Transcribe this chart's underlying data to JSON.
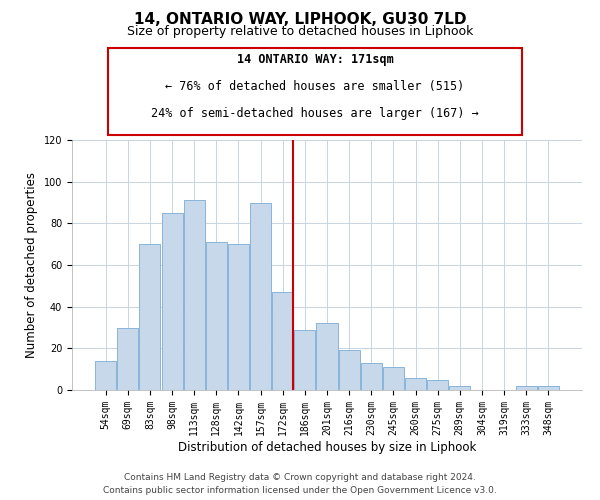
{
  "title": "14, ONTARIO WAY, LIPHOOK, GU30 7LD",
  "subtitle": "Size of property relative to detached houses in Liphook",
  "xlabel": "Distribution of detached houses by size in Liphook",
  "ylabel": "Number of detached properties",
  "bar_labels": [
    "54sqm",
    "69sqm",
    "83sqm",
    "98sqm",
    "113sqm",
    "128sqm",
    "142sqm",
    "157sqm",
    "172sqm",
    "186sqm",
    "201sqm",
    "216sqm",
    "230sqm",
    "245sqm",
    "260sqm",
    "275sqm",
    "289sqm",
    "304sqm",
    "319sqm",
    "333sqm",
    "348sqm"
  ],
  "bar_values": [
    14,
    30,
    70,
    85,
    91,
    71,
    70,
    90,
    47,
    29,
    32,
    19,
    13,
    11,
    6,
    5,
    2,
    0,
    0,
    2,
    2
  ],
  "bar_color": "#c8d8eb",
  "bar_edge_color": "#7bacd4",
  "vline_x_index": 8,
  "vline_color": "#cc0000",
  "annotation_title": "14 ONTARIO WAY: 171sqm",
  "annotation_line1": "← 76% of detached houses are smaller (515)",
  "annotation_line2": "24% of semi-detached houses are larger (167) →",
  "annotation_box_color": "#ffffff",
  "annotation_box_edge_color": "#cc0000",
  "ylim": [
    0,
    120
  ],
  "yticks": [
    0,
    20,
    40,
    60,
    80,
    100,
    120
  ],
  "footer_line1": "Contains HM Land Registry data © Crown copyright and database right 2024.",
  "footer_line2": "Contains public sector information licensed under the Open Government Licence v3.0.",
  "background_color": "#ffffff",
  "grid_color": "#c8d4e0",
  "title_fontsize": 11,
  "subtitle_fontsize": 9,
  "axis_label_fontsize": 8.5,
  "tick_fontsize": 7,
  "annotation_fontsize": 8.5,
  "footer_fontsize": 6.5
}
